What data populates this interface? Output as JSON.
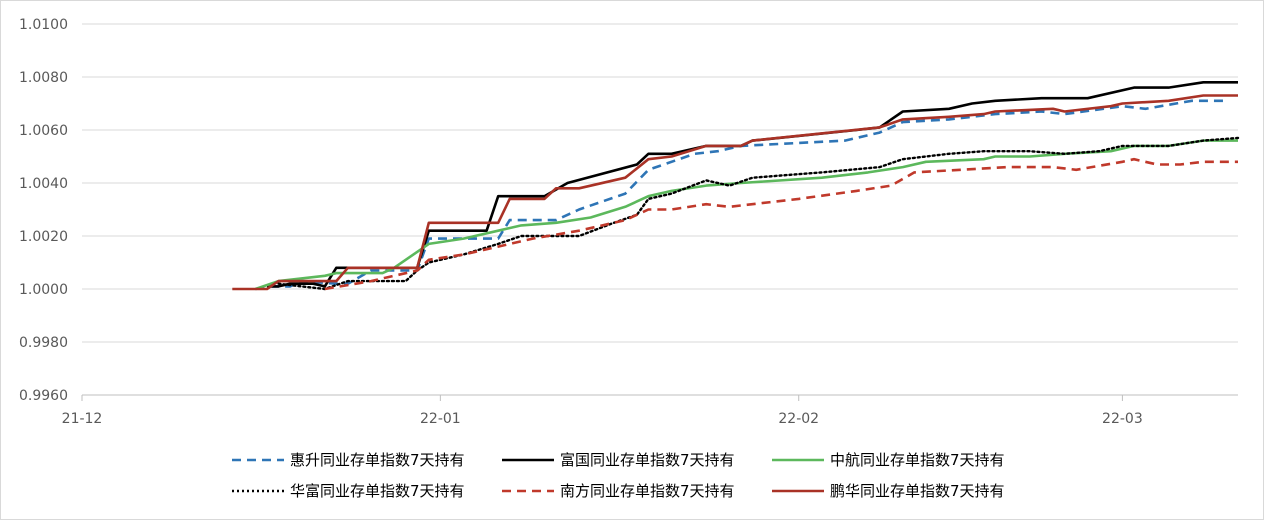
{
  "chart_data": {
    "type": "line",
    "title": "",
    "xlabel": "",
    "ylabel": "",
    "ylim": [
      0.996,
      1.01
    ],
    "y_ticks": [
      "0.9960",
      "0.9980",
      "1.0000",
      "1.0020",
      "1.0040",
      "1.0060",
      "1.0080",
      "1.0100"
    ],
    "x_ticks": [
      "21-12",
      "22-01",
      "22-02",
      "22-03"
    ],
    "x_range": [
      "2021-12-01",
      "2022-03-11"
    ],
    "grid": "horizontal",
    "legend_position": "bottom",
    "series": [
      {
        "name": "惠升同业存单指数7天持有",
        "color": "#2e75b6",
        "dash": "dashed",
        "points": [
          [
            "2021-12-16",
            1.0
          ],
          [
            "2021-12-17",
            1.0001
          ],
          [
            "2021-12-19",
            1.0001
          ],
          [
            "2021-12-20",
            1.0003
          ],
          [
            "2021-12-23",
            1.0002
          ],
          [
            "2021-12-24",
            1.0002
          ],
          [
            "2021-12-26",
            1.0007
          ],
          [
            "2021-12-30",
            1.0007
          ],
          [
            "2021-12-31",
            1.0019
          ],
          [
            "2022-01-06",
            1.0019
          ],
          [
            "2022-01-07",
            1.0026
          ],
          [
            "2022-01-11",
            1.0026
          ],
          [
            "2022-01-13",
            1.003
          ],
          [
            "2022-01-17",
            1.0036
          ],
          [
            "2022-01-19",
            1.0045
          ],
          [
            "2022-01-23",
            1.0051
          ],
          [
            "2022-01-25",
            1.0052
          ],
          [
            "2022-01-27",
            1.0054
          ],
          [
            "2022-02-05",
            1.0056
          ],
          [
            "2022-02-08",
            1.0059
          ],
          [
            "2022-02-10",
            1.0063
          ],
          [
            "2022-02-14",
            1.0064
          ],
          [
            "2022-02-18",
            1.0066
          ],
          [
            "2022-02-22",
            1.0067
          ],
          [
            "2022-02-24",
            1.0066
          ],
          [
            "2022-03-01",
            1.0069
          ],
          [
            "2022-03-03",
            1.0068
          ],
          [
            "2022-03-07",
            1.0071
          ],
          [
            "2022-03-10",
            1.0071
          ]
        ]
      },
      {
        "name": "富国同业存单指数7天持有",
        "color": "#000000",
        "dash": "solid",
        "points": [
          [
            "2021-12-17",
            1.0001
          ],
          [
            "2021-12-18",
            1.0001
          ],
          [
            "2021-12-19",
            1.0002
          ],
          [
            "2021-12-21",
            1.0002
          ],
          [
            "2021-12-22",
            1.0001
          ],
          [
            "2021-12-23",
            1.0008
          ],
          [
            "2021-12-30",
            1.0008
          ],
          [
            "2021-12-31",
            1.0022
          ],
          [
            "2022-01-05",
            1.0022
          ],
          [
            "2022-01-06",
            1.0035
          ],
          [
            "2022-01-10",
            1.0035
          ],
          [
            "2022-01-12",
            1.004
          ],
          [
            "2022-01-18",
            1.0047
          ],
          [
            "2022-01-19",
            1.0051
          ],
          [
            "2022-01-21",
            1.0051
          ],
          [
            "2022-01-24",
            1.0054
          ],
          [
            "2022-01-27",
            1.0054
          ],
          [
            "2022-01-28",
            1.0056
          ],
          [
            "2022-02-06",
            1.006
          ],
          [
            "2022-02-08",
            1.0061
          ],
          [
            "2022-02-10",
            1.0067
          ],
          [
            "2022-02-14",
            1.0068
          ],
          [
            "2022-02-16",
            1.007
          ],
          [
            "2022-02-18",
            1.0071
          ],
          [
            "2022-02-22",
            1.0072
          ],
          [
            "2022-02-26",
            1.0072
          ],
          [
            "2022-03-02",
            1.0076
          ],
          [
            "2022-03-05",
            1.0076
          ],
          [
            "2022-03-08",
            1.0078
          ],
          [
            "2022-03-11",
            1.0078
          ]
        ]
      },
      {
        "name": "中航同业存单指数7天持有",
        "color": "#5cb85c",
        "dash": "solid",
        "points": [
          [
            "2021-12-16",
            1.0
          ],
          [
            "2021-12-18",
            1.0003
          ],
          [
            "2021-12-20",
            1.0004
          ],
          [
            "2021-12-22",
            1.0005
          ],
          [
            "2021-12-23",
            1.0006
          ],
          [
            "2021-12-27",
            1.0006
          ],
          [
            "2021-12-28",
            1.0008
          ],
          [
            "2021-12-31",
            1.0017
          ],
          [
            "2022-01-03",
            1.0019
          ],
          [
            "2022-01-06",
            1.0022
          ],
          [
            "2022-01-08",
            1.0024
          ],
          [
            "2022-01-11",
            1.0025
          ],
          [
            "2022-01-14",
            1.0027
          ],
          [
            "2022-01-17",
            1.0031
          ],
          [
            "2022-01-19",
            1.0035
          ],
          [
            "2022-01-21",
            1.0037
          ],
          [
            "2022-01-24",
            1.0039
          ],
          [
            "2022-01-27",
            1.004
          ],
          [
            "2022-02-03",
            1.0042
          ],
          [
            "2022-02-07",
            1.0044
          ],
          [
            "2022-02-10",
            1.0046
          ],
          [
            "2022-02-12",
            1.0048
          ],
          [
            "2022-02-17",
            1.0049
          ],
          [
            "2022-02-18",
            1.005
          ],
          [
            "2022-02-21",
            1.005
          ],
          [
            "2022-02-24",
            1.0051
          ],
          [
            "2022-02-28",
            1.0052
          ],
          [
            "2022-03-02",
            1.0054
          ],
          [
            "2022-03-05",
            1.0054
          ],
          [
            "2022-03-08",
            1.0056
          ],
          [
            "2022-03-11",
            1.0056
          ]
        ]
      },
      {
        "name": "华富同业存单指数7天持有",
        "color": "#000000",
        "dash": "dotted",
        "points": [
          [
            "2021-12-18",
            1.0002
          ],
          [
            "2021-12-20",
            1.0001
          ],
          [
            "2021-12-22",
            1.0
          ],
          [
            "2021-12-24",
            1.0003
          ],
          [
            "2021-12-29",
            1.0003
          ],
          [
            "2021-12-30",
            1.0007
          ],
          [
            "2021-12-31",
            1.001
          ],
          [
            "2022-01-03",
            1.0013
          ],
          [
            "2022-01-06",
            1.0017
          ],
          [
            "2022-01-08",
            1.002
          ],
          [
            "2022-01-13",
            1.002
          ],
          [
            "2022-01-16",
            1.0025
          ],
          [
            "2022-01-18",
            1.0028
          ],
          [
            "2022-01-19",
            1.0034
          ],
          [
            "2022-01-21",
            1.0036
          ],
          [
            "2022-01-24",
            1.0041
          ],
          [
            "2022-01-26",
            1.0039
          ],
          [
            "2022-01-28",
            1.0042
          ],
          [
            "2022-02-03",
            1.0044
          ],
          [
            "2022-02-08",
            1.0046
          ],
          [
            "2022-02-10",
            1.0049
          ],
          [
            "2022-02-14",
            1.0051
          ],
          [
            "2022-02-17",
            1.0052
          ],
          [
            "2022-02-21",
            1.0052
          ],
          [
            "2022-02-24",
            1.0051
          ],
          [
            "2022-02-27",
            1.0052
          ],
          [
            "2022-03-01",
            1.0054
          ],
          [
            "2022-03-05",
            1.0054
          ],
          [
            "2022-03-08",
            1.0056
          ],
          [
            "2022-03-11",
            1.0057
          ]
        ]
      },
      {
        "name": "南方同业存单指数7天持有",
        "color": "#c0392b",
        "dash": "dashed",
        "points": [
          [
            "2021-12-22",
            1.0
          ],
          [
            "2021-12-26",
            1.0003
          ],
          [
            "2021-12-28",
            1.0005
          ],
          [
            "2021-12-30",
            1.0007
          ],
          [
            "2021-12-31",
            1.0011
          ],
          [
            "2022-01-03",
            1.0013
          ],
          [
            "2022-01-06",
            1.0016
          ],
          [
            "2022-01-09",
            1.0019
          ],
          [
            "2022-01-13",
            1.0022
          ],
          [
            "2022-01-17",
            1.0026
          ],
          [
            "2022-01-19",
            1.003
          ],
          [
            "2022-01-21",
            1.003
          ],
          [
            "2022-01-24",
            1.0032
          ],
          [
            "2022-01-26",
            1.0031
          ],
          [
            "2022-02-01",
            1.0034
          ],
          [
            "2022-02-06",
            1.0037
          ],
          [
            "2022-02-09",
            1.0039
          ],
          [
            "2022-02-11",
            1.0044
          ],
          [
            "2022-02-15",
            1.0045
          ],
          [
            "2022-02-19",
            1.0046
          ],
          [
            "2022-02-23",
            1.0046
          ],
          [
            "2022-02-25",
            1.0045
          ],
          [
            "2022-03-01",
            1.0048
          ],
          [
            "2022-03-02",
            1.0049
          ],
          [
            "2022-03-04",
            1.0047
          ],
          [
            "2022-03-06",
            1.0047
          ],
          [
            "2022-03-08",
            1.0048
          ],
          [
            "2022-03-11",
            1.0048
          ]
        ]
      },
      {
        "name": "鹏华同业存单指数7天持有",
        "color": "#a93226",
        "dash": "solid",
        "points": [
          [
            "2021-12-14",
            1.0
          ],
          [
            "2021-12-17",
            1.0
          ],
          [
            "2021-12-18",
            1.0003
          ],
          [
            "2021-12-23",
            1.0003
          ],
          [
            "2021-12-24",
            1.0008
          ],
          [
            "2021-12-30",
            1.0008
          ],
          [
            "2021-12-31",
            1.0025
          ],
          [
            "2022-01-06",
            1.0025
          ],
          [
            "2022-01-07",
            1.0034
          ],
          [
            "2022-01-10",
            1.0034
          ],
          [
            "2022-01-11",
            1.0038
          ],
          [
            "2022-01-13",
            1.0038
          ],
          [
            "2022-01-17",
            1.0042
          ],
          [
            "2022-01-19",
            1.0049
          ],
          [
            "2022-01-21",
            1.005
          ],
          [
            "2022-01-24",
            1.0054
          ],
          [
            "2022-01-27",
            1.0054
          ],
          [
            "2022-01-28",
            1.0056
          ],
          [
            "2022-02-08",
            1.0061
          ],
          [
            "2022-02-10",
            1.0064
          ],
          [
            "2022-02-14",
            1.0065
          ],
          [
            "2022-02-17",
            1.0066
          ],
          [
            "2022-02-18",
            1.0067
          ],
          [
            "2022-02-23",
            1.0068
          ],
          [
            "2022-02-24",
            1.0067
          ],
          [
            "2022-02-28",
            1.0069
          ],
          [
            "2022-03-01",
            1.007
          ],
          [
            "2022-03-05",
            1.0071
          ],
          [
            "2022-03-08",
            1.0073
          ],
          [
            "2022-03-11",
            1.0073
          ]
        ]
      }
    ]
  }
}
